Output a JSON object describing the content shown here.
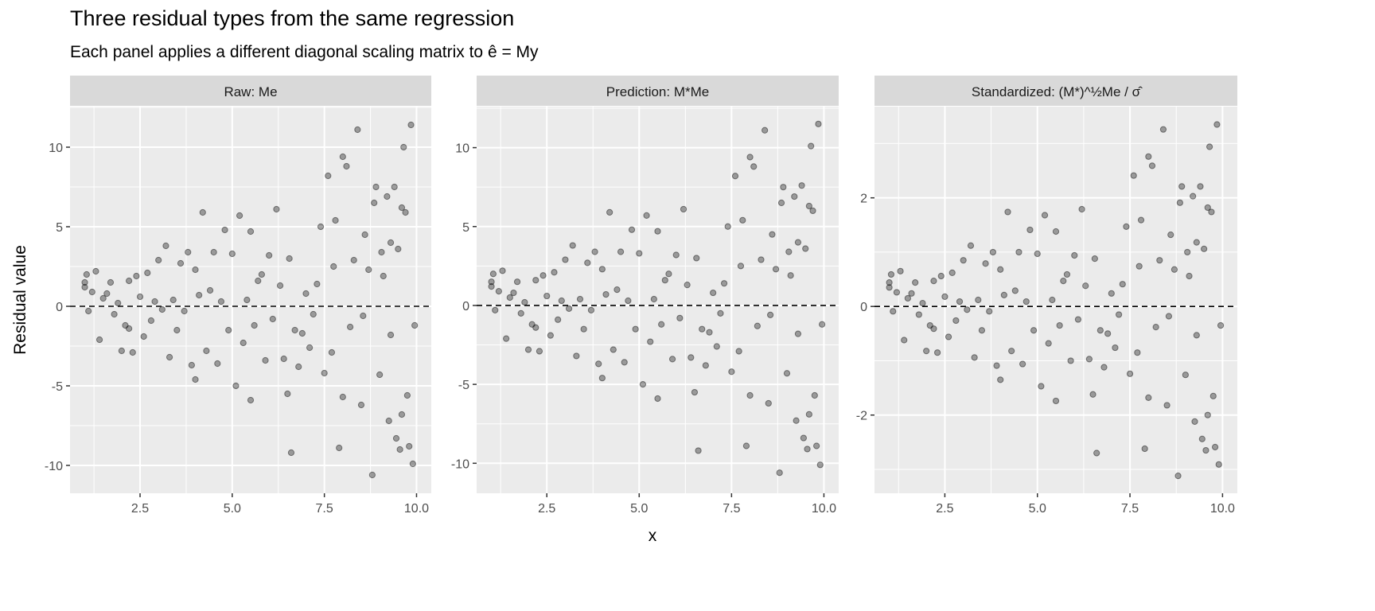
{
  "chart_data": {
    "type": "scatter",
    "title": "Three residual types from the same regression",
    "subtitle": "Each panel applies a different diagonal scaling matrix to ê = My",
    "xlabel": "x",
    "ylabel": "Residual value",
    "grid": true,
    "reference_line": {
      "y": 0,
      "style": "dashed"
    },
    "x": [
      1.0,
      1.0,
      1.05,
      1.1,
      1.2,
      1.3,
      1.4,
      1.5,
      1.6,
      1.7,
      1.8,
      1.9,
      2.0,
      2.1,
      2.2,
      2.2,
      2.3,
      2.4,
      2.5,
      2.6,
      2.7,
      2.8,
      2.9,
      3.0,
      3.1,
      3.2,
      3.3,
      3.4,
      3.5,
      3.6,
      3.7,
      3.8,
      3.9,
      4.0,
      4.0,
      4.1,
      4.2,
      4.3,
      4.4,
      4.5,
      4.6,
      4.7,
      4.8,
      4.9,
      5.0,
      5.1,
      5.2,
      5.3,
      5.4,
      5.5,
      5.5,
      5.6,
      5.7,
      5.8,
      5.9,
      6.0,
      6.1,
      6.2,
      6.3,
      6.4,
      6.5,
      6.55,
      6.6,
      6.7,
      6.8,
      6.9,
      7.0,
      7.1,
      7.2,
      7.3,
      7.4,
      7.5,
      7.6,
      7.7,
      7.75,
      7.8,
      7.9,
      8.0,
      8.0,
      8.1,
      8.2,
      8.3,
      8.4,
      8.5,
      8.55,
      8.6,
      8.7,
      8.8,
      8.85,
      8.9,
      9.0,
      9.05,
      9.1,
      9.2,
      9.25,
      9.3,
      9.4,
      9.45,
      9.5,
      9.55,
      9.6,
      9.65,
      9.7,
      9.75,
      9.8,
      9.85,
      9.9,
      9.95,
      9.3,
      9.6
    ],
    "panels": [
      {
        "strip": "Raw: Me",
        "xlim": [
          0.6,
          10.4
        ],
        "ylim": [
          -11.75,
          12.55
        ],
        "xticks": [
          2.5,
          5.0,
          7.5,
          10.0
        ],
        "xtick_labels": [
          "2.5",
          "5.0",
          "7.5",
          "10.0"
        ],
        "yticks": [
          -10,
          -5,
          0,
          5,
          10
        ],
        "ytick_labels": [
          "-10",
          "-5",
          "0",
          "5",
          "10"
        ],
        "yminor": [
          -7.5,
          -2.5,
          2.5,
          7.5,
          12.5
        ],
        "values": [
          1.5,
          1.2,
          2.0,
          -0.3,
          0.9,
          2.2,
          -2.1,
          0.5,
          0.8,
          1.5,
          -0.5,
          0.2,
          -2.8,
          -1.2,
          1.6,
          -1.4,
          -2.9,
          1.9,
          0.6,
          -1.9,
          2.1,
          -0.9,
          0.3,
          2.9,
          -0.2,
          3.8,
          -3.2,
          0.4,
          -1.5,
          2.7,
          -0.3,
          3.4,
          -3.7,
          -4.6,
          2.3,
          0.7,
          5.9,
          -2.8,
          1.0,
          3.4,
          -3.6,
          0.3,
          4.8,
          -1.5,
          3.3,
          -5.0,
          5.7,
          -2.3,
          0.4,
          -5.9,
          4.7,
          -1.2,
          1.6,
          2.0,
          -3.4,
          3.2,
          -0.8,
          6.1,
          1.3,
          -3.3,
          -5.5,
          3.0,
          -9.2,
          -1.5,
          -3.8,
          -1.7,
          0.8,
          -2.6,
          -0.5,
          1.4,
          5.0,
          -4.2,
          8.2,
          -2.9,
          2.5,
          5.4,
          -8.9,
          9.4,
          -5.7,
          8.8,
          -1.3,
          2.9,
          11.1,
          -6.2,
          -0.6,
          4.5,
          2.3,
          -10.6,
          6.5,
          7.5,
          -4.3,
          3.4,
          1.9,
          6.9,
          -7.2,
          -1.8,
          7.5,
          -8.3,
          3.6,
          -9.0,
          -6.8,
          10.0,
          5.9,
          -5.6,
          -8.8,
          11.4,
          -9.9,
          -1.2,
          4.0,
          6.2
        ]
      },
      {
        "strip": "Prediction: M*Me",
        "xlim": [
          0.6,
          10.4
        ],
        "ylim": [
          -11.9,
          12.6
        ],
        "xticks": [
          2.5,
          5.0,
          7.5,
          10.0
        ],
        "xtick_labels": [
          "2.5",
          "5.0",
          "7.5",
          "10.0"
        ],
        "yticks": [
          -10,
          -5,
          0,
          5,
          10
        ],
        "ytick_labels": [
          "-10",
          "-5",
          "0",
          "5",
          "10"
        ],
        "yminor": [
          -7.5,
          -2.5,
          2.5,
          7.5,
          12.5
        ],
        "values": [
          1.5,
          1.2,
          2.0,
          -0.3,
          0.9,
          2.2,
          -2.1,
          0.5,
          0.8,
          1.5,
          -0.5,
          0.2,
          -2.8,
          -1.2,
          1.6,
          -1.4,
          -2.9,
          1.9,
          0.6,
          -1.9,
          2.1,
          -0.9,
          0.3,
          2.9,
          -0.2,
          3.8,
          -3.2,
          0.4,
          -1.5,
          2.7,
          -0.3,
          3.4,
          -3.7,
          -4.6,
          2.3,
          0.7,
          5.9,
          -2.8,
          1.0,
          3.4,
          -3.6,
          0.3,
          4.8,
          -1.5,
          3.3,
          -5.0,
          5.7,
          -2.3,
          0.4,
          -5.9,
          4.7,
          -1.2,
          1.6,
          2.0,
          -3.4,
          3.2,
          -0.8,
          6.1,
          1.3,
          -3.3,
          -5.5,
          3.0,
          -9.2,
          -1.5,
          -3.8,
          -1.7,
          0.8,
          -2.6,
          -0.5,
          1.4,
          5.0,
          -4.2,
          8.2,
          -2.9,
          2.5,
          5.4,
          -8.9,
          9.4,
          -5.7,
          8.8,
          -1.3,
          2.9,
          11.1,
          -6.2,
          -0.6,
          4.5,
          2.3,
          -10.6,
          6.5,
          7.5,
          -4.3,
          3.4,
          1.9,
          6.9,
          -7.3,
          -1.8,
          7.6,
          -8.4,
          3.6,
          -9.1,
          -6.9,
          10.1,
          6.0,
          -5.7,
          -8.9,
          11.5,
          -10.1,
          -1.2,
          4.0,
          6.3
        ]
      },
      {
        "strip": "Standardized: (M*)^½Me / σ̂",
        "xlim": [
          0.6,
          10.4
        ],
        "ylim": [
          -3.44,
          3.68
        ],
        "xticks": [
          2.5,
          5.0,
          7.5,
          10.0
        ],
        "xtick_labels": [
          "2.5",
          "5.0",
          "7.5",
          "10.0"
        ],
        "yticks": [
          -2,
          0,
          2
        ],
        "ytick_labels": [
          "-2",
          "0",
          "2"
        ],
        "yminor": [
          -3,
          -1,
          1,
          3
        ],
        "values": [
          0.44,
          0.35,
          0.59,
          -0.09,
          0.26,
          0.65,
          -0.62,
          0.15,
          0.24,
          0.44,
          -0.15,
          0.06,
          -0.82,
          -0.35,
          0.47,
          -0.41,
          -0.85,
          0.56,
          0.18,
          -0.56,
          0.62,
          -0.26,
          0.09,
          0.85,
          -0.06,
          1.12,
          -0.94,
          0.12,
          -0.44,
          0.79,
          -0.09,
          1.0,
          -1.09,
          -1.35,
          0.68,
          0.21,
          1.74,
          -0.82,
          0.29,
          1.0,
          -1.06,
          0.09,
          1.41,
          -0.44,
          0.97,
          -1.47,
          1.68,
          -0.68,
          0.12,
          -1.74,
          1.38,
          -0.35,
          0.47,
          0.59,
          -1.0,
          0.94,
          -0.24,
          1.79,
          0.38,
          -0.97,
          -1.62,
          0.88,
          -2.7,
          -0.44,
          -1.12,
          -0.5,
          0.24,
          -0.76,
          -0.15,
          0.41,
          1.47,
          -1.24,
          2.41,
          -0.85,
          0.74,
          1.59,
          -2.62,
          2.76,
          -1.68,
          2.59,
          -0.38,
          0.85,
          3.26,
          -1.82,
          -0.18,
          1.32,
          0.68,
          -3.12,
          1.91,
          2.21,
          -1.26,
          1.0,
          0.56,
          2.03,
          -2.12,
          -0.53,
          2.21,
          -2.44,
          1.06,
          -2.65,
          -2.0,
          2.94,
          1.74,
          -1.65,
          -2.59,
          3.35,
          -2.91,
          -0.35,
          1.18,
          1.82
        ]
      }
    ]
  }
}
